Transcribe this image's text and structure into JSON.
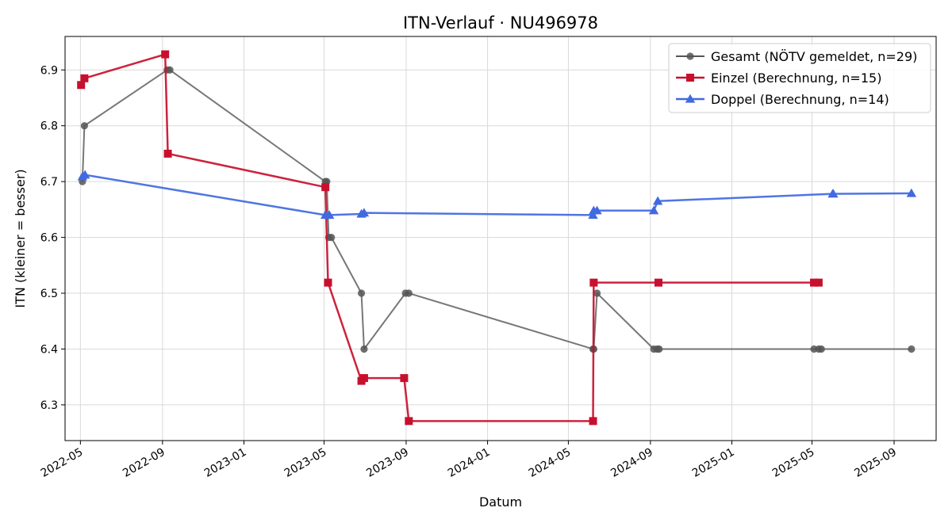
{
  "chart_data": {
    "type": "line",
    "title": "ITN-Verlauf · NU496978",
    "xlabel": "Datum",
    "ylabel": "ITN  (kleiner = besser)",
    "grid": true,
    "legend_position": "top-right",
    "xlim": [
      "2022-04-08",
      "2025-11-03"
    ],
    "ylim": [
      6.236,
      6.96
    ],
    "x_ticks": [
      "2022-05-01",
      "2022-09-01",
      "2023-01-01",
      "2023-05-01",
      "2023-09-01",
      "2024-01-01",
      "2024-05-01",
      "2024-09-01",
      "2025-01-01",
      "2025-05-01",
      "2025-09-01"
    ],
    "x_tick_labels": [
      "2022-05",
      "2022-09",
      "2023-01",
      "2023-05",
      "2023-09",
      "2024-01",
      "2024-05",
      "2024-09",
      "2025-01",
      "2025-05",
      "2025-09"
    ],
    "y_ticks": [
      6.3,
      6.4,
      6.5,
      6.6,
      6.7,
      6.8,
      6.9
    ],
    "y_tick_labels": [
      "6.3",
      "6.4",
      "6.5",
      "6.6",
      "6.7",
      "6.8",
      "6.9"
    ],
    "series": [
      {
        "name": "Gesamt (NÖTV gemeldet, n=29)",
        "color": "#555555",
        "marker": "circle",
        "line_width": 2,
        "points": [
          {
            "x": "2022-05-04",
            "y": 6.7
          },
          {
            "x": "2022-05-07",
            "y": 6.8
          },
          {
            "x": "2022-09-08",
            "y": 6.9
          },
          {
            "x": "2022-09-12",
            "y": 6.9
          },
          {
            "x": "2023-05-03",
            "y": 6.7
          },
          {
            "x": "2023-05-05",
            "y": 6.7
          },
          {
            "x": "2023-05-08",
            "y": 6.6
          },
          {
            "x": "2023-05-12",
            "y": 6.6
          },
          {
            "x": "2023-06-26",
            "y": 6.5
          },
          {
            "x": "2023-06-30",
            "y": 6.4
          },
          {
            "x": "2023-08-31",
            "y": 6.5
          },
          {
            "x": "2023-09-05",
            "y": 6.5
          },
          {
            "x": "2024-06-07",
            "y": 6.4
          },
          {
            "x": "2024-06-08",
            "y": 6.4
          },
          {
            "x": "2024-06-13",
            "y": 6.5
          },
          {
            "x": "2024-09-06",
            "y": 6.4
          },
          {
            "x": "2024-09-11",
            "y": 6.4
          },
          {
            "x": "2024-09-14",
            "y": 6.4
          },
          {
            "x": "2025-05-04",
            "y": 6.4
          },
          {
            "x": "2025-05-11",
            "y": 6.4
          },
          {
            "x": "2025-05-15",
            "y": 6.4
          },
          {
            "x": "2025-09-27",
            "y": 6.4
          }
        ]
      },
      {
        "name": "Einzel (Berechnung, n=15)",
        "color": "#c8102e",
        "marker": "square",
        "line_width": 2.5,
        "points": [
          {
            "x": "2022-05-02",
            "y": 6.873
          },
          {
            "x": "2022-05-07",
            "y": 6.885
          },
          {
            "x": "2022-09-05",
            "y": 6.928
          },
          {
            "x": "2022-09-09",
            "y": 6.75
          },
          {
            "x": "2023-05-03",
            "y": 6.69
          },
          {
            "x": "2023-05-07",
            "y": 6.519
          },
          {
            "x": "2023-06-26",
            "y": 6.343
          },
          {
            "x": "2023-06-30",
            "y": 6.348
          },
          {
            "x": "2023-08-29",
            "y": 6.348
          },
          {
            "x": "2023-09-05",
            "y": 6.271
          },
          {
            "x": "2024-06-07",
            "y": 6.271
          },
          {
            "x": "2024-06-08",
            "y": 6.519
          },
          {
            "x": "2024-09-13",
            "y": 6.519
          },
          {
            "x": "2025-05-04",
            "y": 6.519
          },
          {
            "x": "2025-05-11",
            "y": 6.519
          }
        ]
      },
      {
        "name": "Doppel (Berechnung, n=14)",
        "color": "#4169e1",
        "marker": "triangle",
        "line_width": 2.5,
        "points": [
          {
            "x": "2022-05-04",
            "y": 6.709
          },
          {
            "x": "2022-05-08",
            "y": 6.712
          },
          {
            "x": "2023-05-03",
            "y": 6.64
          },
          {
            "x": "2023-05-09",
            "y": 6.64
          },
          {
            "x": "2023-06-26",
            "y": 6.642
          },
          {
            "x": "2023-06-30",
            "y": 6.644
          },
          {
            "x": "2024-06-07",
            "y": 6.64
          },
          {
            "x": "2024-06-08",
            "y": 6.648
          },
          {
            "x": "2024-06-13",
            "y": 6.648
          },
          {
            "x": "2024-09-06",
            "y": 6.648
          },
          {
            "x": "2024-09-12",
            "y": 6.665
          },
          {
            "x": "2025-06-01",
            "y": 6.678
          },
          {
            "x": "2025-06-02",
            "y": 6.678
          },
          {
            "x": "2025-09-27",
            "y": 6.679
          }
        ]
      }
    ]
  }
}
